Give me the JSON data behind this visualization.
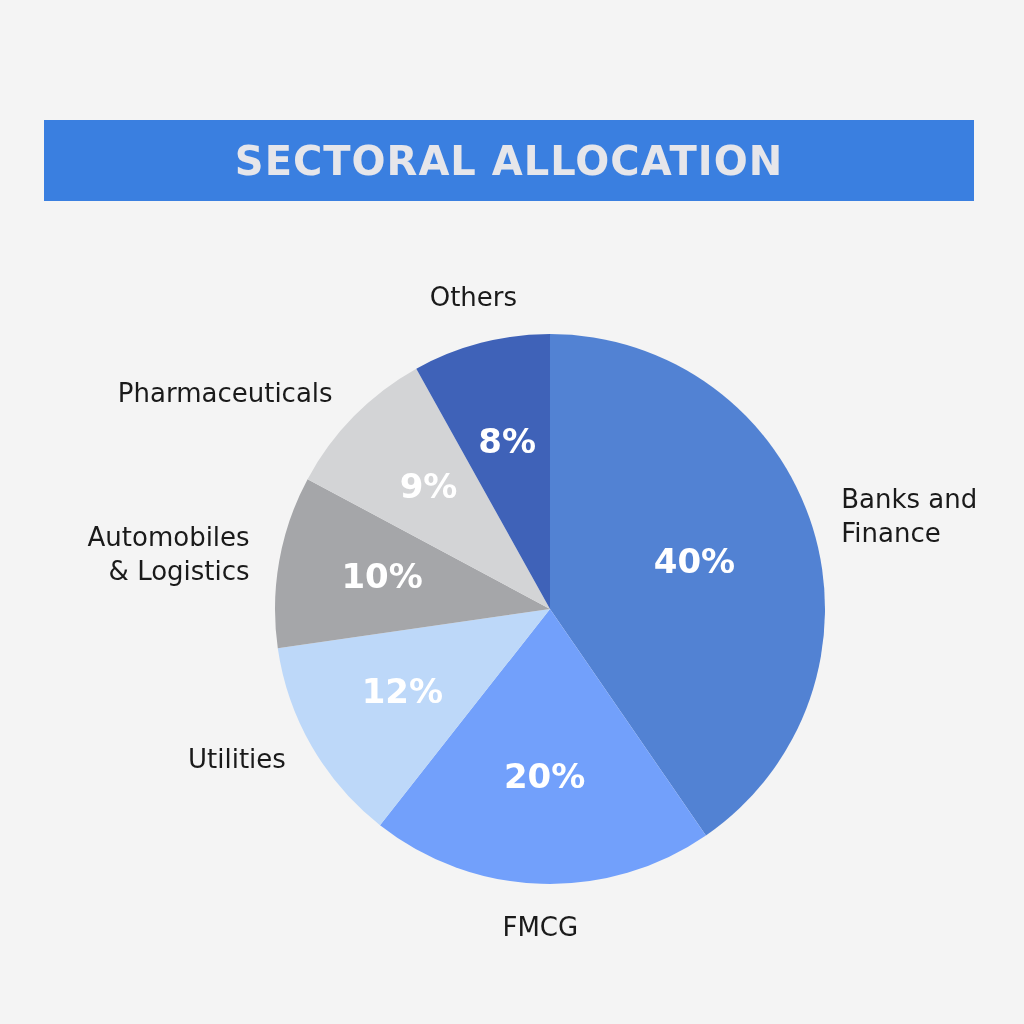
{
  "chart_data": {
    "type": "pie",
    "title": "SECTORAL ALLOCATION",
    "categories": [
      "Banks and Finance",
      "FMCG",
      "Utilities",
      "Automobiles & Logistics",
      "Pharmaceuticals",
      "Others"
    ],
    "values": [
      40,
      20,
      12,
      10,
      9,
      8
    ],
    "colors": [
      "#5282d3",
      "#72a0fb",
      "#bdd8f9",
      "#a5a6a9",
      "#d3d4d6",
      "#3f62b8"
    ],
    "value_labels": [
      "40%",
      "20%",
      "12%",
      "10%",
      "9%",
      "8%"
    ],
    "legend": false
  }
}
